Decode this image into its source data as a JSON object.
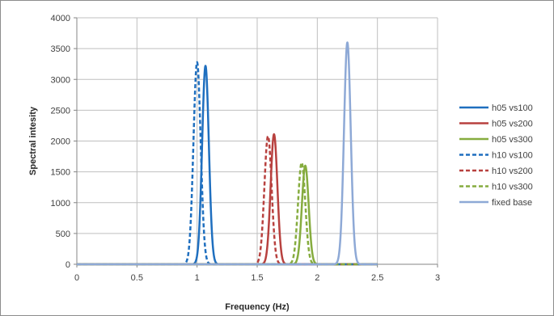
{
  "chart_data": {
    "type": "line",
    "title": "",
    "xlabel": "Frequency (Hz)",
    "ylabel": "Spectral intesity",
    "xlim": [
      0,
      3
    ],
    "ylim": [
      0,
      4000
    ],
    "x_ticks": [
      "0",
      "0.5",
      "1",
      "1.5",
      "2",
      "2.5",
      "3"
    ],
    "y_ticks": [
      "0",
      "500",
      "1000",
      "1500",
      "2000",
      "2500",
      "3000",
      "3500",
      "4000"
    ],
    "grid": "vertical and horizontal major gridlines",
    "legend_position": "right",
    "curve_model": "narrow gaussian peaks; each series is zero outside its peak",
    "series": [
      {
        "name": "h05 vs100",
        "color": "#1f6fbf",
        "dash": "solid",
        "peak_x": 1.07,
        "peak_y": 3220,
        "width": 0.028
      },
      {
        "name": "h05 vs200",
        "color": "#b8413f",
        "dash": "solid",
        "peak_x": 1.64,
        "peak_y": 2110,
        "width": 0.028
      },
      {
        "name": "h05 vs300",
        "color": "#86ac3f",
        "dash": "solid",
        "peak_x": 1.9,
        "peak_y": 1600,
        "width": 0.028
      },
      {
        "name": "h10 vs100",
        "color": "#1f6fbf",
        "dash": "dashed",
        "peak_x": 1.0,
        "peak_y": 3280,
        "width": 0.03
      },
      {
        "name": "h10 vs200",
        "color": "#b8413f",
        "dash": "dashed",
        "peak_x": 1.59,
        "peak_y": 2080,
        "width": 0.03
      },
      {
        "name": "h10 vs300",
        "color": "#86ac3f",
        "dash": "dashed",
        "peak_x": 1.87,
        "peak_y": 1650,
        "width": 0.03
      },
      {
        "name": "fixed base",
        "color": "#8ea9d6",
        "dash": "solid",
        "peak_x": 2.25,
        "peak_y": 3600,
        "width": 0.028
      }
    ]
  }
}
